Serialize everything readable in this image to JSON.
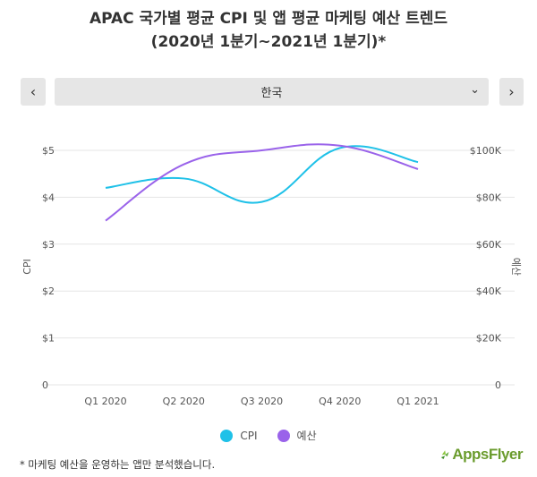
{
  "title_line1": "APAC 국가별 평균 CPI 및 앱 평균 마케팅 예산 트렌드",
  "title_line2": "(2020년 1분기~2021년 1분기)*",
  "selector": {
    "value": "한국",
    "prev_symbol": "‹",
    "next_symbol": "›",
    "chevron": "⌄"
  },
  "chart_data": {
    "type": "line",
    "categories": [
      "Q1 2020",
      "Q2 2020",
      "Q3 2020",
      "Q4 2020",
      "Q1 2021"
    ],
    "y_left": {
      "label": "CPI",
      "ticks": [
        "0",
        "$1",
        "$2",
        "$3",
        "$4",
        "$5"
      ],
      "range": [
        0,
        5
      ]
    },
    "y_right": {
      "label": "예산",
      "ticks": [
        "0",
        "$20K",
        "$40K",
        "$60K",
        "$80K",
        "$100K"
      ],
      "range": [
        0,
        100000
      ]
    },
    "series": [
      {
        "name": "CPI",
        "axis": "left",
        "color": "#1fc1e8",
        "values": [
          4.2,
          4.4,
          3.9,
          5.05,
          4.75
        ]
      },
      {
        "name": "예산",
        "axis": "right",
        "color": "#9a63ea",
        "values": [
          70000,
          94000,
          100000,
          102000,
          92000
        ]
      }
    ],
    "grid": true,
    "legend_position": "bottom"
  },
  "footnote": "* 마케팅 예산을 운영하는 앱만 분석했습니다.",
  "logo_text": "AppsFlyer"
}
